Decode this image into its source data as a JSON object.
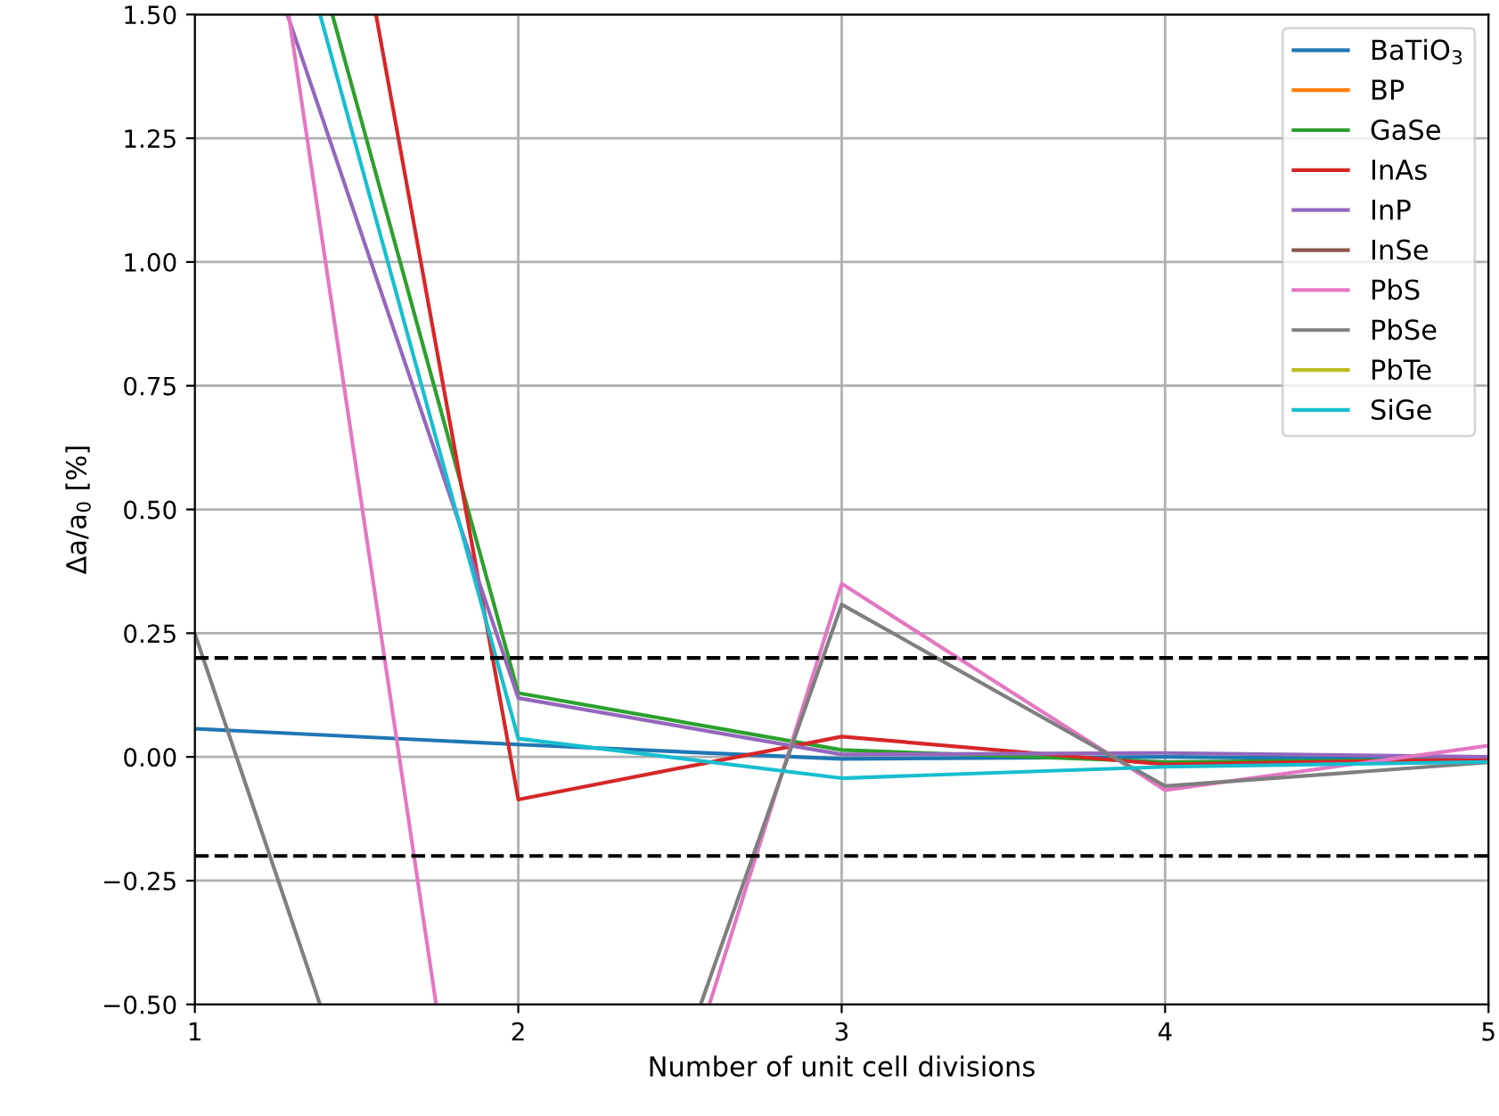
{
  "chart_data": {
    "type": "line",
    "xlabel": "Number of unit cell divisions",
    "ylabel": "Δa/a$_{0}$ [%]",
    "x": [
      1,
      2,
      3,
      4,
      5
    ],
    "series": [
      {
        "name": "BaTiO$_{3}$",
        "color": "#1f77b4",
        "values": [
          0.057,
          0.025,
          -0.004,
          0.0,
          -0.005
        ]
      },
      {
        "name": "BP",
        "color": "#ff7f0e",
        "values": [
          null,
          null,
          null,
          null,
          null
        ]
      },
      {
        "name": "GaSe",
        "color": "#2ca02c",
        "x": [
          1.425,
          2,
          3,
          4,
          5
        ],
        "values": [
          1.5,
          0.129,
          0.014,
          -0.01,
          -0.005
        ]
      },
      {
        "name": "InAs",
        "color": "#d62728",
        "x": [
          1.56,
          2,
          3,
          4,
          5
        ],
        "values": [
          1.5,
          -0.086,
          0.041,
          -0.015,
          -0.005
        ]
      },
      {
        "name": "InP",
        "color": "#9467bd",
        "x": [
          1.286,
          2,
          3,
          4,
          5
        ],
        "values": [
          1.5,
          0.119,
          0.005,
          0.008,
          0.0
        ]
      },
      {
        "name": "InSe",
        "color": "#8c564b",
        "values": [
          null,
          null,
          null,
          null,
          null
        ]
      },
      {
        "name": "PbS",
        "color": "#e377c2",
        "x": [
          1.29,
          1.746,
          2,
          2.591,
          3,
          4,
          5
        ],
        "values": [
          1.5,
          -0.5,
          null,
          -0.5,
          0.35,
          -0.067,
          0.023
        ]
      },
      {
        "name": "PbSe",
        "color": "#7f7f7f",
        "x": [
          1,
          1.387,
          2,
          2.564,
          3,
          4,
          5
        ],
        "values": [
          0.249,
          -0.5,
          null,
          -0.5,
          0.308,
          -0.059,
          -0.011
        ]
      },
      {
        "name": "PbTe",
        "color": "#bcbd22",
        "values": [
          null,
          null,
          null,
          null,
          null
        ]
      },
      {
        "name": "SiGe",
        "color": "#17becf",
        "x": [
          1.387,
          2,
          3,
          4,
          5
        ],
        "values": [
          1.5,
          0.037,
          -0.043,
          -0.02,
          -0.01
        ]
      }
    ],
    "xlim": [
      1,
      5
    ],
    "ylim": [
      -0.5,
      1.5
    ],
    "xticks": [
      1,
      2,
      3,
      4,
      5
    ],
    "yticks": [
      {
        "value": -0.5,
        "label": "−0.50"
      },
      {
        "value": -0.25,
        "label": "−0.25"
      },
      {
        "value": 0,
        "label": "0.00"
      },
      {
        "value": 0.25,
        "label": "0.25"
      },
      {
        "value": 0.5,
        "label": "0.50"
      },
      {
        "value": 0.75,
        "label": "0.75"
      },
      {
        "value": 1.0,
        "label": "1.00"
      },
      {
        "value": 1.25,
        "label": "1.25"
      },
      {
        "value": 1.5,
        "label": "1.50"
      }
    ],
    "ref_lines": [
      {
        "axis": "y",
        "value": 0.2,
        "color": "#000000",
        "line_style": "dashed"
      },
      {
        "axis": "y",
        "value": -0.2,
        "color": "#000000",
        "line_style": "dashed"
      }
    ],
    "grid": true,
    "legend": "top right",
    "marker": "none",
    "line_style": "solid"
  }
}
